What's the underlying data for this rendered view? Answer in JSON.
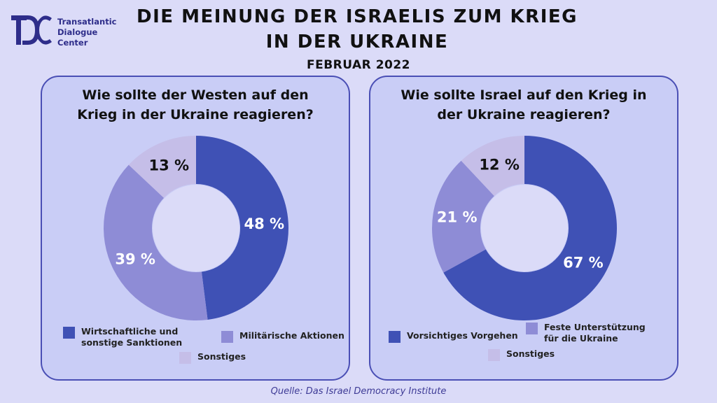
{
  "org": {
    "lines": [
      "Transatlantic",
      "Dialogue",
      "Center"
    ]
  },
  "title_lines": [
    "DIE MEINUNG DER ISRAELIS ZUM KRIEG",
    "IN DER UKRAINE"
  ],
  "subtitle": "FEBRUAR 2022",
  "colors": {
    "dark": "#3f51b5",
    "mid": "#8e8cd6",
    "light": "#c5bee8",
    "background": "#dbdbf8",
    "panel": "#c9cdf6"
  },
  "chart_data": [
    {
      "type": "pie",
      "title_lines": [
        "Wie sollte der Westen auf den",
        "Krieg in der Ukraine reagieren?"
      ],
      "slices": [
        {
          "label_lines": [
            "Wirtschaftliche und",
            "sonstige Sanktionen"
          ],
          "value": 48,
          "display": "48 %",
          "color": "#3f51b5"
        },
        {
          "label_lines": [
            "Militärische Aktionen"
          ],
          "value": 39,
          "display": "39 %",
          "color": "#8e8cd6"
        },
        {
          "label_lines": [
            "Sonstiges"
          ],
          "value": 13,
          "display": "13 %",
          "color": "#c5bee8"
        }
      ]
    },
    {
      "type": "pie",
      "title_lines": [
        "Wie sollte Israel auf den Krieg in",
        "der Ukraine reagieren?"
      ],
      "slices": [
        {
          "label_lines": [
            "Vorsichtiges Vorgehen"
          ],
          "value": 67,
          "display": "67 %",
          "color": "#3f51b5"
        },
        {
          "label_lines": [
            "Feste Unterstützung",
            "für die Ukraine"
          ],
          "value": 21,
          "display": "21 %",
          "color": "#8e8cd6"
        },
        {
          "label_lines": [
            "Sonstiges"
          ],
          "value": 12,
          "display": "12 %",
          "color": "#c5bee8"
        }
      ]
    }
  ],
  "source": "Quelle: Das Israel Democracy Institute"
}
